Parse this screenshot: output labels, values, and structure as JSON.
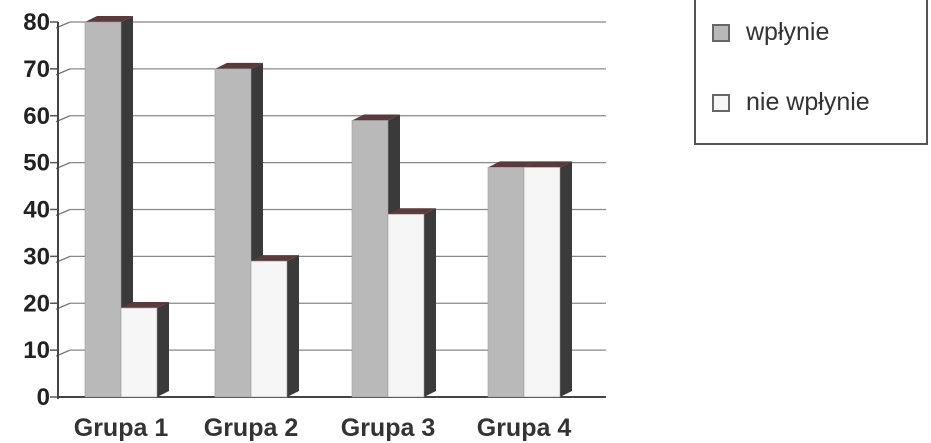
{
  "chart_data": {
    "type": "bar",
    "categories": [
      "Grupa 1",
      "Grupa 2",
      "Grupa 3",
      "Grupa 4"
    ],
    "series": [
      {
        "name": "wpłynie",
        "values": [
          80,
          70,
          59,
          49
        ],
        "color": "#b9b9b9"
      },
      {
        "name": "nie wpłynie",
        "values": [
          19,
          29,
          39,
          49
        ],
        "color": "#f6f6f6"
      }
    ],
    "title": "",
    "xlabel": "",
    "ylabel": "",
    "ylim": [
      0,
      80
    ],
    "yticks": [
      "0",
      "10",
      "20",
      "30",
      "40",
      "50",
      "60",
      "70",
      "80"
    ],
    "grid": true,
    "style": "3d",
    "legend_position": "top-right"
  },
  "legend": {
    "items": [
      {
        "label": "wpłynie",
        "color": "#b9b9b9"
      },
      {
        "label": "nie wpłynie",
        "color": "#f6f6f6"
      }
    ]
  }
}
